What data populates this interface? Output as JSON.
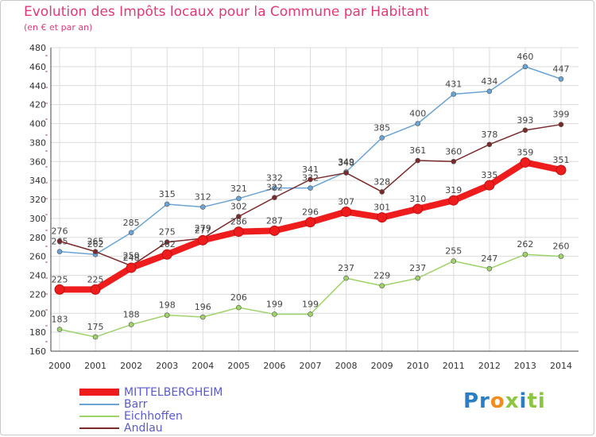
{
  "title": "Evolution des Impôts locaux pour la Commune par Habitant",
  "subtitle": "(en € et par an)",
  "logo": {
    "parts": [
      "Pr",
      "o",
      "x",
      "i",
      "ti"
    ],
    "colors": [
      "#2a7fc4",
      "#f28c1e",
      "#8cc63f",
      "#2a7fc4",
      "#8cc63f"
    ]
  },
  "chart_data": {
    "type": "line",
    "title": "Evolution des Impôts locaux pour la Commune par Habitant",
    "x": [
      2000,
      2001,
      2002,
      2003,
      2004,
      2005,
      2006,
      2007,
      2008,
      2009,
      2010,
      2011,
      2012,
      2013,
      2014
    ],
    "ylim": [
      160,
      480
    ],
    "yticks": [
      160,
      180,
      200,
      220,
      240,
      260,
      280,
      300,
      320,
      340,
      360,
      380,
      400,
      420,
      440,
      460,
      480
    ],
    "grid": true,
    "legend_position": "bottom-left",
    "series": [
      {
        "name": "Barr",
        "color": "#6aa3d5",
        "values": [
          265,
          262,
          285,
          315,
          312,
          321,
          332,
          332,
          349,
          385,
          400,
          431,
          434,
          460,
          447
        ]
      },
      {
        "name": "Andlau",
        "color": "#7a2a2a",
        "values": [
          276,
          265,
          250,
          275,
          279,
          302,
          322,
          341,
          348,
          328,
          361,
          360,
          378,
          393,
          399
        ]
      },
      {
        "name": "Eichhoffen",
        "color": "#9ed36a",
        "values": [
          183,
          175,
          188,
          198,
          196,
          206,
          199,
          199,
          237,
          229,
          237,
          255,
          247,
          262,
          260
        ]
      },
      {
        "name": "MITTELBERGHEIM",
        "color": "#ee1c1c",
        "values": [
          225,
          225,
          248,
          262,
          277,
          286,
          287,
          296,
          307,
          301,
          310,
          319,
          335,
          359,
          351
        ]
      }
    ],
    "legend": [
      {
        "name": "MITTELBERGHEIM",
        "color": "#ee1c1c"
      },
      {
        "name": "Barr",
        "color": "#6aa3d5"
      },
      {
        "name": "Eichhoffen",
        "color": "#9ed36a"
      },
      {
        "name": "Andlau",
        "color": "#7a2a2a"
      }
    ]
  }
}
